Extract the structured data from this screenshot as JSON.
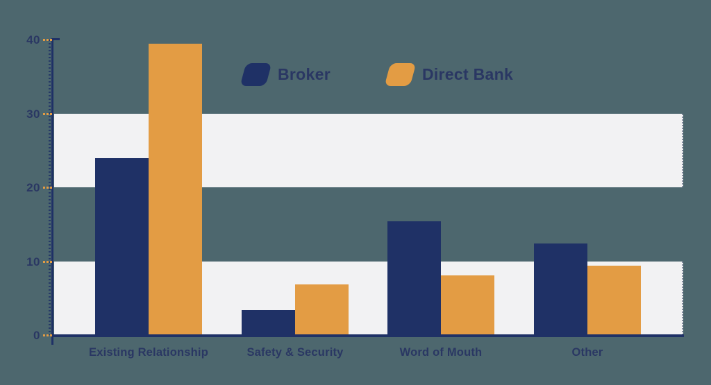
{
  "colors": {
    "background": "#4d676e",
    "navy": "#1f3166",
    "orange": "#e39c44",
    "band": "#f2f2f3",
    "label_text": "#2a3763",
    "tick": "#e39c44"
  },
  "legend": {
    "items": [
      {
        "label": "Broker",
        "swatch": "navy-parallelogram-swatch"
      },
      {
        "label": "Direct Bank",
        "swatch": "orange-parallelogram-swatch"
      }
    ]
  },
  "chart_data": {
    "type": "bar",
    "title": "",
    "xlabel": "",
    "ylabel": "",
    "categories": [
      "Existing Relationship",
      "Safety & Security",
      "Word of Mouth",
      "Other"
    ],
    "series": [
      {
        "name": "Broker",
        "color": "#1f3166",
        "values": [
          23.9,
          3.4,
          15.4,
          12.4
        ]
      },
      {
        "name": "Direct Bank",
        "color": "#e39c44",
        "values": [
          39.4,
          6.9,
          8.1,
          9.4
        ]
      }
    ],
    "ylim": [
      0,
      40
    ],
    "yticks": [
      0,
      10,
      20,
      30,
      40
    ],
    "background_bands": [
      [
        20,
        30
      ],
      [
        0,
        10
      ]
    ],
    "grid": false,
    "legend_position": "top-center"
  }
}
